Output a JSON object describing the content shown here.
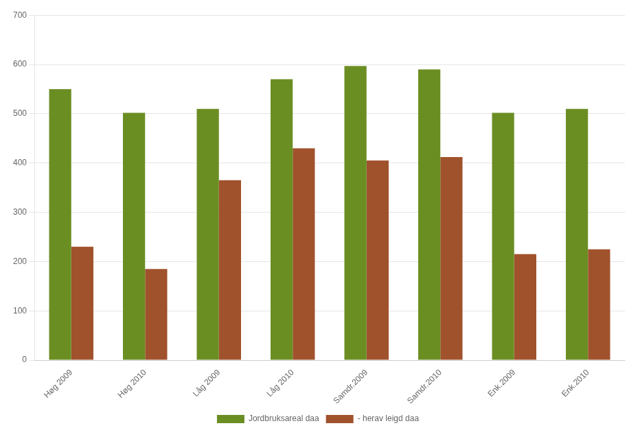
{
  "chart_data": {
    "type": "bar",
    "categories": [
      "Høg 2009",
      "Høg 2010",
      "Låg 2009",
      "Låg 2010",
      "Samdr.2009",
      "Samdr.2010",
      "Enk.2009",
      "Enk.2010"
    ],
    "series": [
      {
        "name": "Jordbruksareal daa",
        "color": "#6B8E23",
        "values": [
          550,
          502,
          510,
          570,
          597,
          590,
          502,
          510
        ]
      },
      {
        "name": "- herav leigd daa",
        "color": "#A0522D",
        "values": [
          230,
          185,
          365,
          430,
          405,
          412,
          215,
          225
        ]
      }
    ],
    "ylim": [
      0,
      700
    ],
    "yticks": [
      0,
      100,
      200,
      300,
      400,
      500,
      600,
      700
    ],
    "grid": true,
    "legend": "bottom"
  }
}
